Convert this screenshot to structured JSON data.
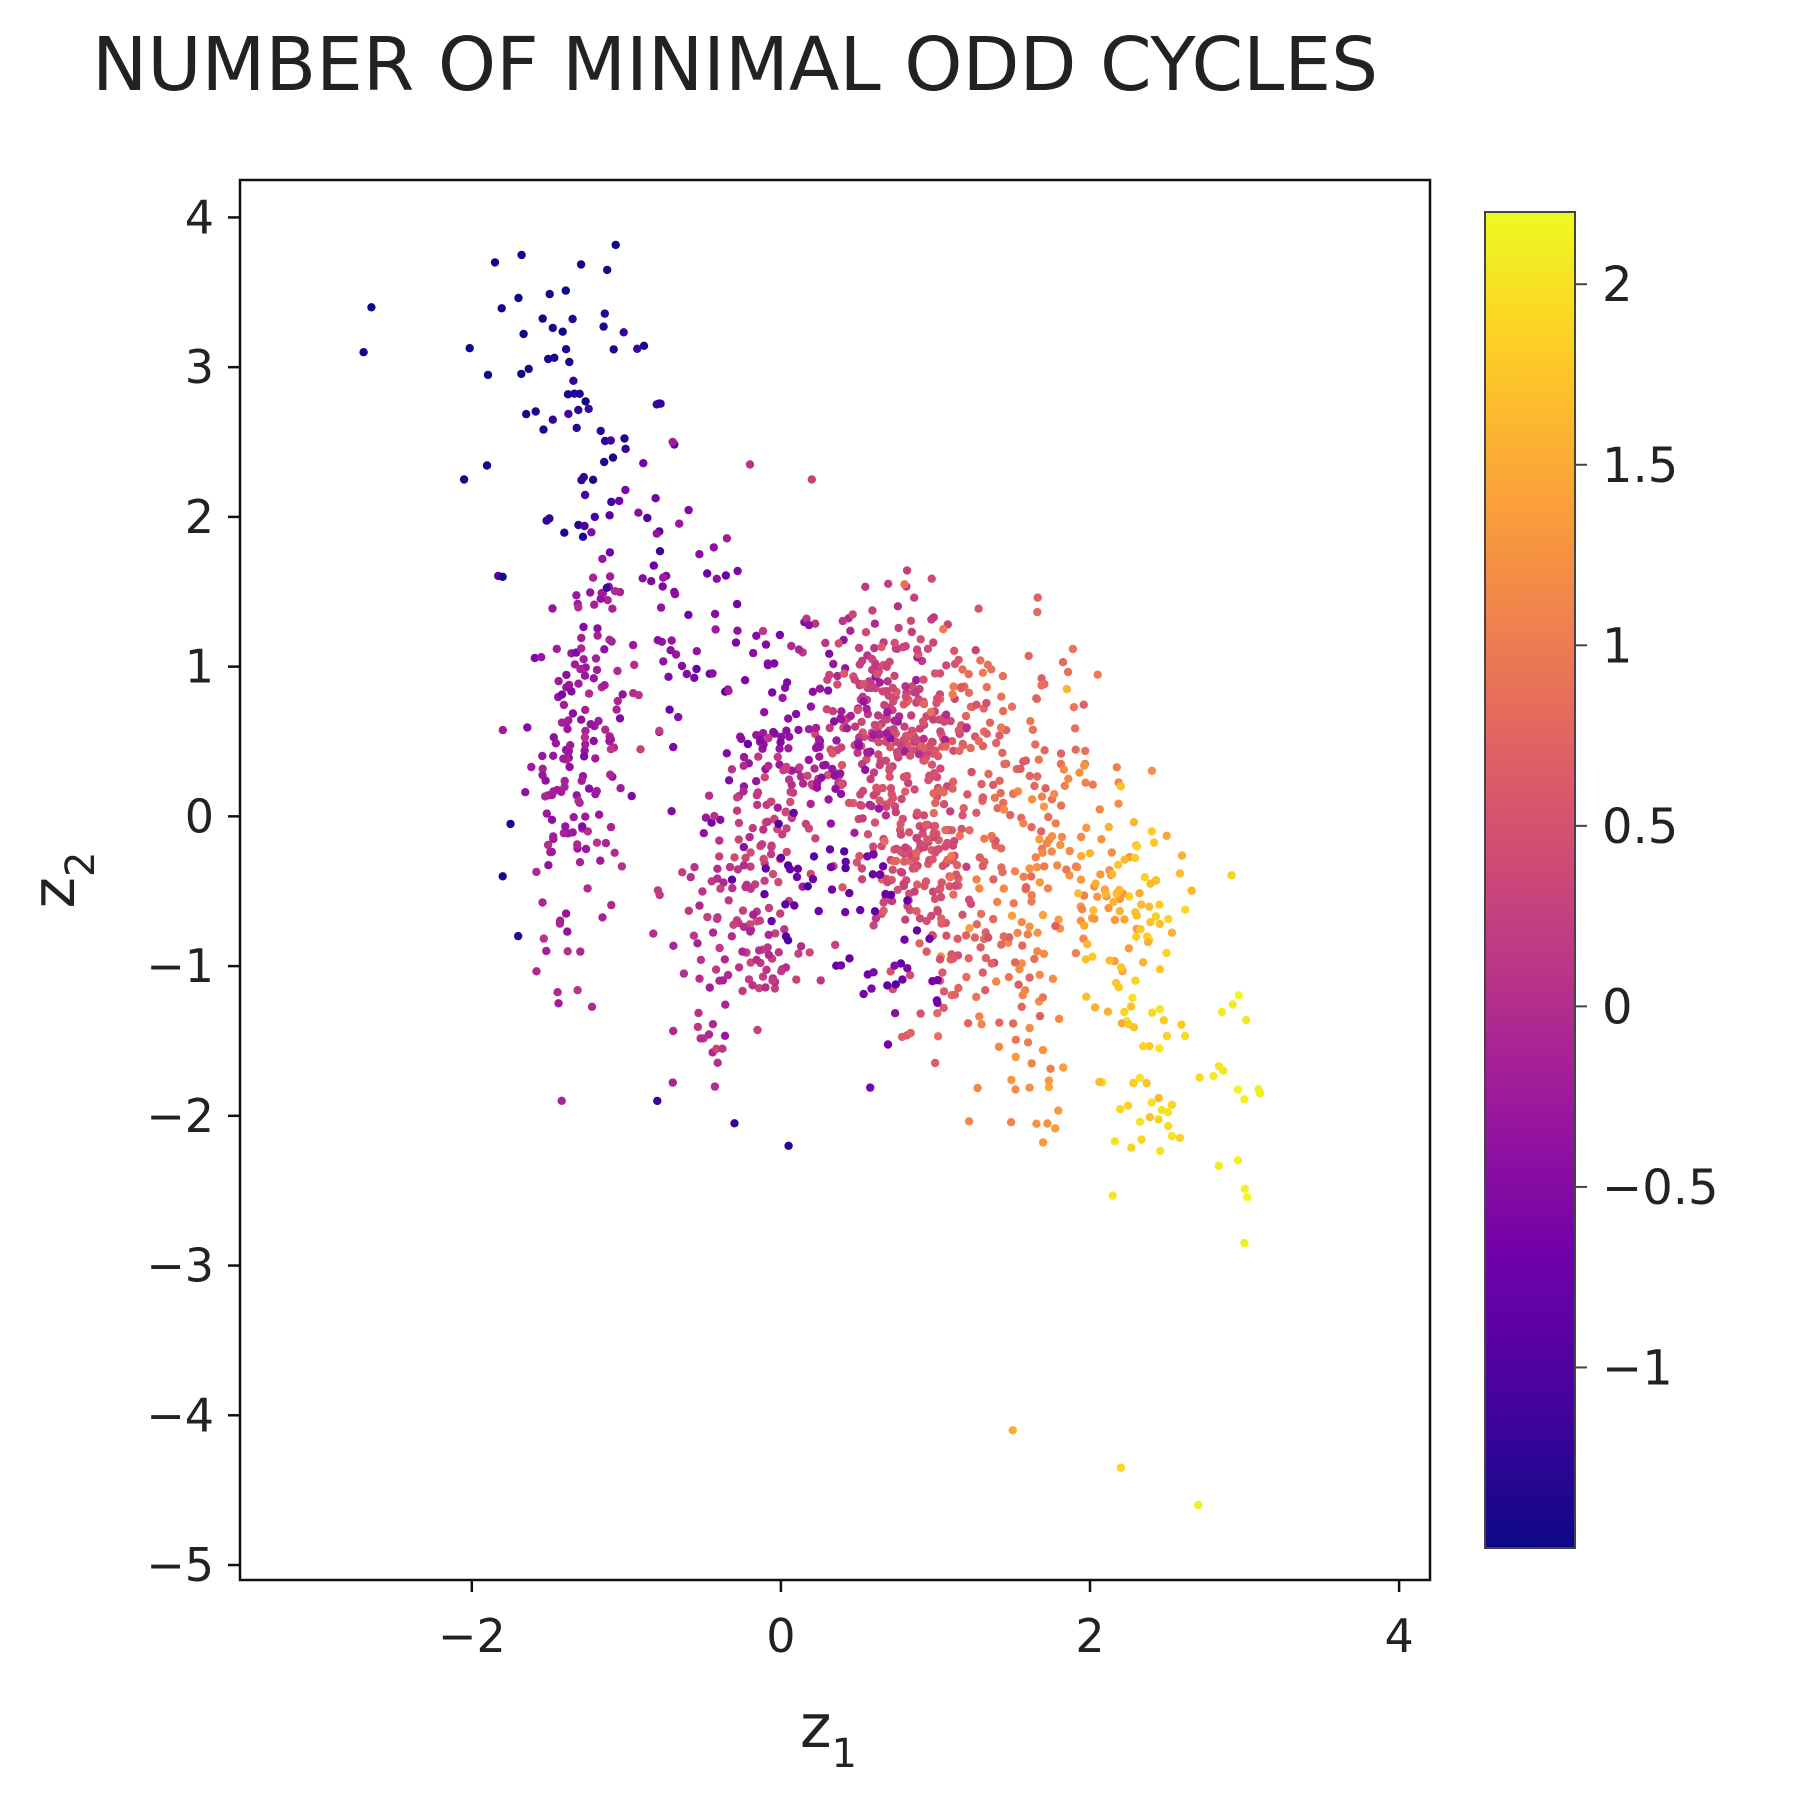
{
  "chart_data": {
    "type": "scatter",
    "title": "NUMBER OF MINIMAL ODD CYCLES",
    "xlabel": "z",
    "xlabel_sub": "1",
    "ylabel": "z",
    "ylabel_sub": "2",
    "xlim": [
      -3.5,
      4.2
    ],
    "ylim": [
      -5.1,
      4.25
    ],
    "xticks": [
      -2,
      0,
      2,
      4
    ],
    "yticks": [
      -5,
      -4,
      -3,
      -2,
      -1,
      0,
      1,
      2,
      3,
      4
    ],
    "xtick_labels": [
      "−2",
      "0",
      "2",
      "4"
    ],
    "ytick_labels": [
      "−5",
      "−4",
      "−3",
      "−2",
      "−1",
      "0",
      "1",
      "2",
      "3",
      "4"
    ],
    "grid": false,
    "colorscale": "plasma",
    "colorbar": {
      "range": [
        -1.5,
        2.2
      ],
      "ticks": [
        -1,
        -0.5,
        0,
        0.5,
        1,
        1.5,
        2
      ],
      "tick_labels": [
        "−1",
        "−0.5",
        "0",
        "0.5",
        "1",
        "1.5",
        "2"
      ]
    },
    "clusters": [
      {
        "cx": 0.75,
        "cy": 0.5,
        "sx": 0.25,
        "sy": 0.35,
        "n": 260,
        "c": 0.4
      },
      {
        "cx": 0.85,
        "cy": -0.35,
        "sx": 0.22,
        "sy": 0.2,
        "n": 120,
        "c": 0.45
      },
      {
        "cx": 0.15,
        "cy": 0.55,
        "sx": 0.45,
        "sy": 0.35,
        "n": 130,
        "c": -0.35
      },
      {
        "cx": -0.05,
        "cy": 0.05,
        "sx": 0.12,
        "sy": 0.2,
        "n": 50,
        "c": 0.2
      },
      {
        "cx": -1.35,
        "cy": 0.3,
        "sx": 0.15,
        "sy": 0.7,
        "n": 130,
        "c": -0.25
      },
      {
        "cx": -1.1,
        "cy": 1.0,
        "sx": 0.12,
        "sy": 0.4,
        "n": 40,
        "c": -0.1
      },
      {
        "cx": -0.35,
        "cy": -0.55,
        "sx": 0.2,
        "sy": 0.25,
        "n": 60,
        "c": 0.2
      },
      {
        "cx": -0.15,
        "cy": -0.95,
        "sx": 0.15,
        "sy": 0.2,
        "n": 40,
        "c": 0.1
      },
      {
        "cx": -0.4,
        "cy": -1.45,
        "sx": 0.12,
        "sy": 0.25,
        "n": 20,
        "c": 0.0
      },
      {
        "cx": 1.4,
        "cy": 0.2,
        "sx": 0.3,
        "sy": 0.4,
        "n": 110,
        "c": 0.75
      },
      {
        "cx": 1.8,
        "cy": -0.4,
        "sx": 0.3,
        "sy": 0.35,
        "n": 100,
        "c": 1.15
      },
      {
        "cx": 2.3,
        "cy": -0.6,
        "sx": 0.2,
        "sy": 0.25,
        "n": 50,
        "c": 1.7
      },
      {
        "cx": 2.35,
        "cy": -1.6,
        "sx": 0.18,
        "sy": 0.55,
        "n": 45,
        "c": 1.85
      },
      {
        "cx": 1.6,
        "cy": -1.6,
        "sx": 0.15,
        "sy": 0.4,
        "n": 30,
        "c": 1.2
      },
      {
        "cx": 1.25,
        "cy": -1.0,
        "sx": 0.25,
        "sy": 0.3,
        "n": 60,
        "c": 0.7
      },
      {
        "cx": 0.7,
        "cy": -1.0,
        "sx": 0.2,
        "sy": 0.3,
        "n": 30,
        "c": -0.7
      },
      {
        "cx": 0.6,
        "cy": 1.2,
        "sx": 0.3,
        "sy": 0.25,
        "n": 40,
        "c": 0.2
      },
      {
        "cx": -0.5,
        "cy": 1.3,
        "sx": 0.25,
        "sy": 0.3,
        "n": 30,
        "c": -0.45
      },
      {
        "cx": -1.4,
        "cy": 3.0,
        "sx": 0.25,
        "sy": 0.4,
        "n": 40,
        "c": -1.4
      },
      {
        "cx": -1.2,
        "cy": 2.2,
        "sx": 0.3,
        "sy": 0.3,
        "n": 30,
        "c": -1.2
      },
      {
        "cx": -0.8,
        "cy": 1.9,
        "sx": 0.15,
        "sy": 0.2,
        "n": 15,
        "c": -0.5
      },
      {
        "cx": 2.95,
        "cy": -1.8,
        "sx": 0.12,
        "sy": 0.5,
        "n": 16,
        "c": 2.05
      },
      {
        "cx": 1.3,
        "cy": 0.8,
        "sx": 0.3,
        "sy": 0.2,
        "n": 30,
        "c": 0.8
      },
      {
        "cx": 0.25,
        "cy": -0.4,
        "sx": 0.25,
        "sy": 0.2,
        "n": 30,
        "c": -0.8
      }
    ],
    "points": [
      {
        "x": -2.7,
        "y": 3.1,
        "c": -1.5
      },
      {
        "x": -2.65,
        "y": 3.4,
        "c": -1.5
      },
      {
        "x": -2.05,
        "y": 2.25,
        "c": -1.5
      },
      {
        "x": -1.85,
        "y": 3.7,
        "c": -1.5
      },
      {
        "x": -1.8,
        "y": 1.6,
        "c": -1.45
      },
      {
        "x": -1.75,
        "y": -0.05,
        "c": -1.4
      },
      {
        "x": -1.8,
        "y": -0.4,
        "c": -1.4
      },
      {
        "x": -1.7,
        "y": -0.8,
        "c": -1.3
      },
      {
        "x": -0.8,
        "y": -1.9,
        "c": -1.2
      },
      {
        "x": -0.3,
        "y": -2.05,
        "c": -1.2
      },
      {
        "x": 0.05,
        "y": -2.2,
        "c": -1.3
      },
      {
        "x": 1.5,
        "y": -4.1,
        "c": 1.5
      },
      {
        "x": 2.2,
        "y": -4.35,
        "c": 1.9
      },
      {
        "x": 2.7,
        "y": -4.6,
        "c": 2.1
      },
      {
        "x": 3.0,
        "y": -2.85,
        "c": 2.1
      },
      {
        "x": 3.1,
        "y": -1.85,
        "c": 2.1
      },
      {
        "x": 1.85,
        "y": 0.85,
        "c": 1.6
      },
      {
        "x": 2.2,
        "y": 0.2,
        "c": 1.7
      },
      {
        "x": 2.4,
        "y": -0.1,
        "c": 1.8
      },
      {
        "x": 0.2,
        "y": 2.25,
        "c": 0.3
      },
      {
        "x": -0.2,
        "y": 2.35,
        "c": 0.1
      },
      {
        "x": -0.7,
        "y": 2.5,
        "c": -0.2
      },
      {
        "x": 0.8,
        "y": 1.55,
        "c": 0.9
      },
      {
        "x": 1.05,
        "y": 1.25,
        "c": 1.0
      }
    ]
  }
}
